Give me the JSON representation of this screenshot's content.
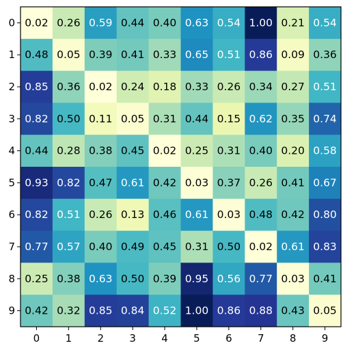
{
  "chart_data": {
    "type": "heatmap",
    "title": "",
    "xlabel": "",
    "ylabel": "",
    "x_ticks": [
      "0",
      "1",
      "2",
      "3",
      "4",
      "5",
      "6",
      "7",
      "8",
      "9"
    ],
    "y_ticks": [
      "0",
      "1",
      "2",
      "3",
      "4",
      "5",
      "6",
      "7",
      "8",
      "9"
    ],
    "colormap": "YlGnBu",
    "vmin": 0.02,
    "vmax": 1.0,
    "label_color_threshold": 0.5,
    "label_colors": {
      "dark_cell": "#ffffff",
      "light_cell": "#000000"
    },
    "matrix": [
      [
        0.02,
        0.26,
        0.59,
        0.44,
        0.4,
        0.63,
        0.54,
        1.0,
        0.21,
        0.54
      ],
      [
        0.48,
        0.05,
        0.39,
        0.41,
        0.33,
        0.65,
        0.51,
        0.86,
        0.09,
        0.36
      ],
      [
        0.85,
        0.36,
        0.02,
        0.24,
        0.18,
        0.33,
        0.26,
        0.34,
        0.27,
        0.51
      ],
      [
        0.82,
        0.5,
        0.11,
        0.05,
        0.31,
        0.44,
        0.15,
        0.62,
        0.35,
        0.74
      ],
      [
        0.44,
        0.28,
        0.38,
        0.45,
        0.02,
        0.25,
        0.31,
        0.4,
        0.2,
        0.58
      ],
      [
        0.93,
        0.82,
        0.47,
        0.61,
        0.42,
        0.03,
        0.37,
        0.26,
        0.41,
        0.67
      ],
      [
        0.82,
        0.51,
        0.26,
        0.13,
        0.46,
        0.61,
        0.03,
        0.48,
        0.42,
        0.8
      ],
      [
        0.77,
        0.57,
        0.4,
        0.49,
        0.45,
        0.31,
        0.5,
        0.02,
        0.61,
        0.83
      ],
      [
        0.25,
        0.38,
        0.63,
        0.5,
        0.39,
        0.95,
        0.56,
        0.77,
        0.03,
        0.41
      ],
      [
        0.42,
        0.32,
        0.85,
        0.84,
        0.52,
        1.0,
        0.86,
        0.88,
        0.43,
        0.05
      ]
    ]
  }
}
